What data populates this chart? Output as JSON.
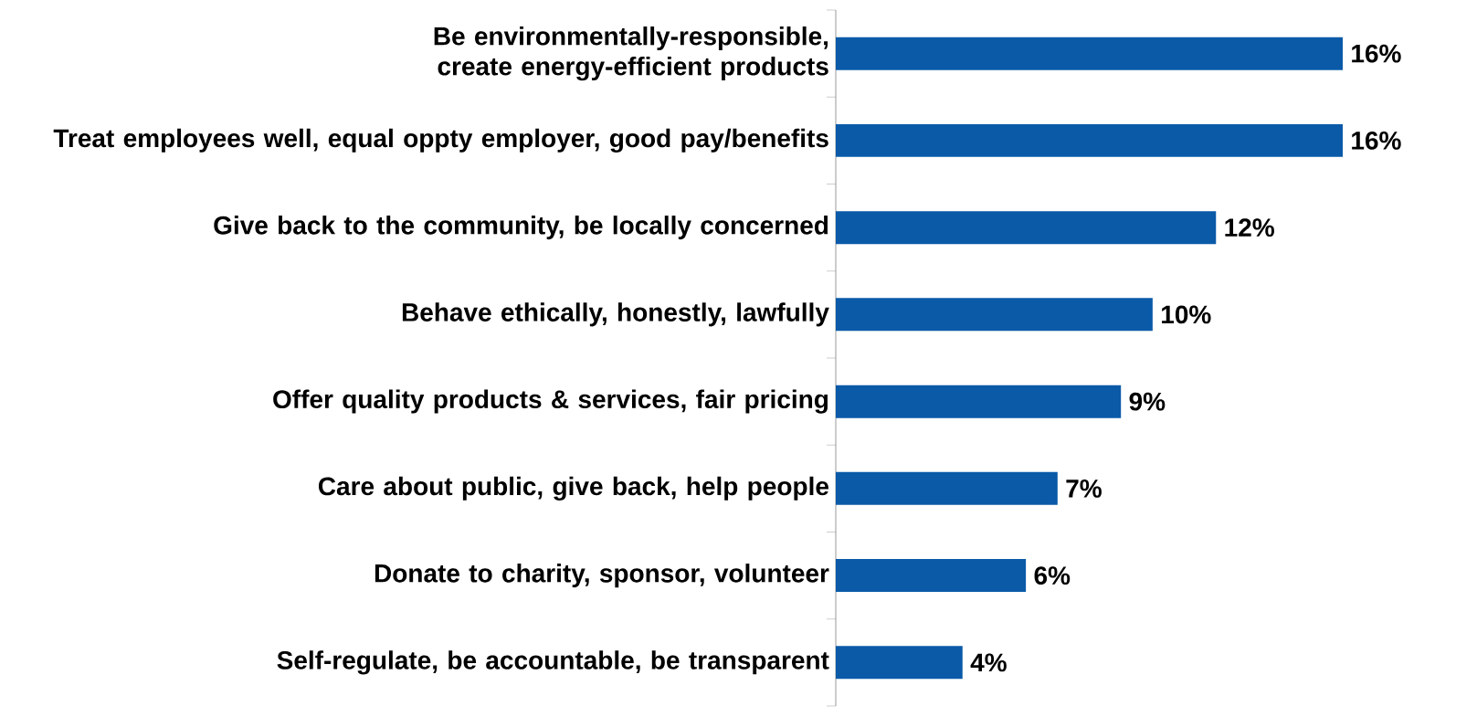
{
  "chart_data": {
    "type": "bar",
    "orientation": "horizontal",
    "categories": [
      "Be environmentally-responsible, create energy-efficient products",
      "Treat employees well, equal oppty employer, good pay/benefits",
      "Give back to the community, be locally concerned",
      "Behave ethically, honestly, lawfully",
      "Offer quality products & services, fair pricing",
      "Care about public, give back, help people",
      "Donate to charity, sponsor, volunteer",
      "Self-regulate, be accountable, be transparent"
    ],
    "values": [
      16,
      16,
      12,
      10,
      9,
      7,
      6,
      4
    ],
    "value_labels": [
      "16%",
      "16%",
      "12%",
      "10%",
      "9%",
      "7%",
      "6%",
      "4%"
    ],
    "color": "#0a5aa8"
  }
}
